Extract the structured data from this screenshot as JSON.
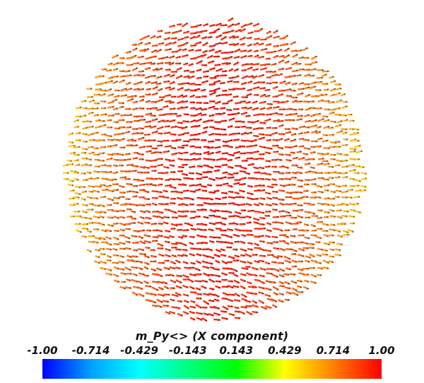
{
  "scene": {
    "colormap": [
      "#0000ff",
      "#00a0ff",
      "#00ffff",
      "#00ff80",
      "#00ff00",
      "#ffff00",
      "#ff8000",
      "#ff0000"
    ],
    "arrow_stroke": "#222222"
  },
  "legend": {
    "title": "m_Py<> (X component)",
    "ticks": [
      "-1.00",
      "-0.714",
      "-0.429",
      "-0.143",
      "0.143",
      "0.429",
      "0.714",
      "1.00"
    ],
    "range": [
      -1.0,
      1.0
    ]
  }
}
